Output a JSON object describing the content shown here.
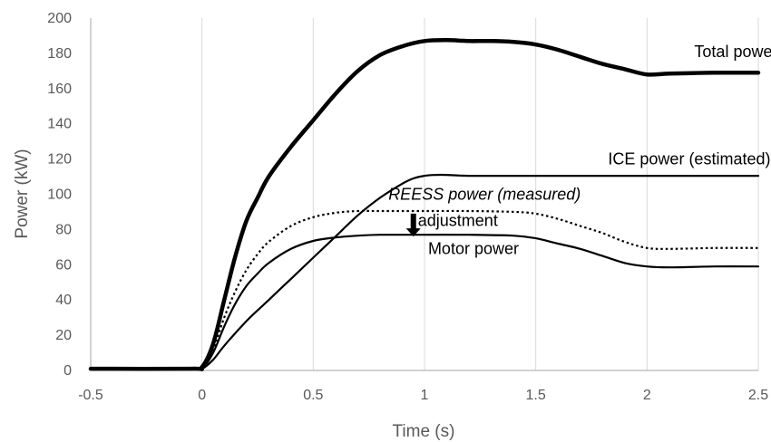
{
  "chart_data": {
    "type": "line",
    "xlabel": "Time (s)",
    "ylabel": "Power (kW)",
    "xlim": [
      -0.5,
      2.5
    ],
    "ylim": [
      0,
      200
    ],
    "x_ticks": [
      "-0.5",
      "0",
      "0.5",
      "1",
      "1.5",
      "2",
      "2.5"
    ],
    "y_ticks": [
      "0",
      "20",
      "40",
      "60",
      "80",
      "100",
      "120",
      "140",
      "160",
      "180",
      "200"
    ],
    "grid": "vertical",
    "legend": "none",
    "series": [
      {
        "name": "Total power",
        "style": "thick-solid",
        "color": "#000000",
        "points": [
          [
            -0.5,
            1
          ],
          [
            -0.05,
            1
          ],
          [
            0,
            2
          ],
          [
            0.05,
            15
          ],
          [
            0.1,
            40
          ],
          [
            0.15,
            65
          ],
          [
            0.2,
            85
          ],
          [
            0.25,
            98
          ],
          [
            0.3,
            110
          ],
          [
            0.4,
            127
          ],
          [
            0.5,
            142
          ],
          [
            0.6,
            157
          ],
          [
            0.7,
            170
          ],
          [
            0.8,
            179
          ],
          [
            0.9,
            184
          ],
          [
            1.0,
            187
          ],
          [
            1.1,
            187.5
          ],
          [
            1.2,
            187
          ],
          [
            1.3,
            187
          ],
          [
            1.4,
            186.5
          ],
          [
            1.5,
            185
          ],
          [
            1.6,
            182
          ],
          [
            1.7,
            178
          ],
          [
            1.8,
            174
          ],
          [
            1.9,
            171
          ],
          [
            2.0,
            168
          ],
          [
            2.1,
            168.5
          ],
          [
            2.3,
            169
          ],
          [
            2.5,
            169
          ]
        ]
      },
      {
        "name": "ICE power (estimated)",
        "style": "solid",
        "color": "#000000",
        "points": [
          [
            -0.5,
            1
          ],
          [
            -0.05,
            1
          ],
          [
            0,
            1
          ],
          [
            0.05,
            6
          ],
          [
            0.1,
            14
          ],
          [
            0.2,
            28
          ],
          [
            0.3,
            40
          ],
          [
            0.4,
            52
          ],
          [
            0.5,
            64
          ],
          [
            0.6,
            76
          ],
          [
            0.7,
            88
          ],
          [
            0.8,
            98
          ],
          [
            0.9,
            106
          ],
          [
            0.95,
            109
          ],
          [
            1.0,
            110.5
          ],
          [
            1.05,
            111
          ],
          [
            1.1,
            111
          ],
          [
            1.2,
            110.5
          ],
          [
            1.5,
            110.5
          ],
          [
            2.0,
            110.5
          ],
          [
            2.5,
            110.5
          ]
        ]
      },
      {
        "name": "REESS power (measured)",
        "style": "dotted",
        "color": "#000000",
        "points": [
          [
            -0.5,
            1
          ],
          [
            -0.05,
            1
          ],
          [
            0,
            1
          ],
          [
            0.05,
            12
          ],
          [
            0.1,
            30
          ],
          [
            0.15,
            45
          ],
          [
            0.2,
            57
          ],
          [
            0.25,
            66
          ],
          [
            0.3,
            73
          ],
          [
            0.4,
            82
          ],
          [
            0.5,
            87
          ],
          [
            0.6,
            89.5
          ],
          [
            0.7,
            90.5
          ],
          [
            0.8,
            90.5
          ],
          [
            1.0,
            90.5
          ],
          [
            1.2,
            90.5
          ],
          [
            1.4,
            90
          ],
          [
            1.5,
            89
          ],
          [
            1.6,
            86
          ],
          [
            1.7,
            82
          ],
          [
            1.8,
            78
          ],
          [
            1.9,
            73
          ],
          [
            2.0,
            69.5
          ],
          [
            2.1,
            69
          ],
          [
            2.3,
            69.5
          ],
          [
            2.5,
            69.5
          ]
        ]
      },
      {
        "name": "Motor power",
        "style": "solid",
        "color": "#000000",
        "points": [
          [
            -0.5,
            1
          ],
          [
            -0.05,
            1
          ],
          [
            0,
            1
          ],
          [
            0.05,
            10
          ],
          [
            0.1,
            25
          ],
          [
            0.15,
            38
          ],
          [
            0.2,
            48
          ],
          [
            0.25,
            55
          ],
          [
            0.3,
            61
          ],
          [
            0.4,
            69
          ],
          [
            0.5,
            73.5
          ],
          [
            0.6,
            75.5
          ],
          [
            0.7,
            76.5
          ],
          [
            0.8,
            77
          ],
          [
            1.0,
            77
          ],
          [
            1.2,
            77
          ],
          [
            1.4,
            76.5
          ],
          [
            1.5,
            75
          ],
          [
            1.6,
            72
          ],
          [
            1.7,
            69
          ],
          [
            1.8,
            65
          ],
          [
            1.9,
            61
          ],
          [
            2.0,
            59
          ],
          [
            2.1,
            58.5
          ],
          [
            2.3,
            59
          ],
          [
            2.5,
            59
          ]
        ]
      }
    ],
    "annotations": [
      {
        "text": "Total power",
        "x": 2.4,
        "y": 178,
        "anchor": "middle",
        "italic": false
      },
      {
        "text": "ICE power (estimated)",
        "x": 2.19,
        "y": 117,
        "anchor": "middle",
        "italic": false
      },
      {
        "text": "REESS power (measured)",
        "x": 1.27,
        "y": 97,
        "anchor": "middle",
        "italic": true
      },
      {
        "text": "adjustment",
        "x": 1.15,
        "y": 82,
        "anchor": "middle",
        "italic": false
      },
      {
        "text": "Motor power",
        "x": 1.22,
        "y": 66,
        "anchor": "middle",
        "italic": false
      }
    ],
    "arrow": {
      "label": "adjustment",
      "x": 0.95,
      "y_from": 89,
      "y_to": 76,
      "direction": "down"
    }
  }
}
